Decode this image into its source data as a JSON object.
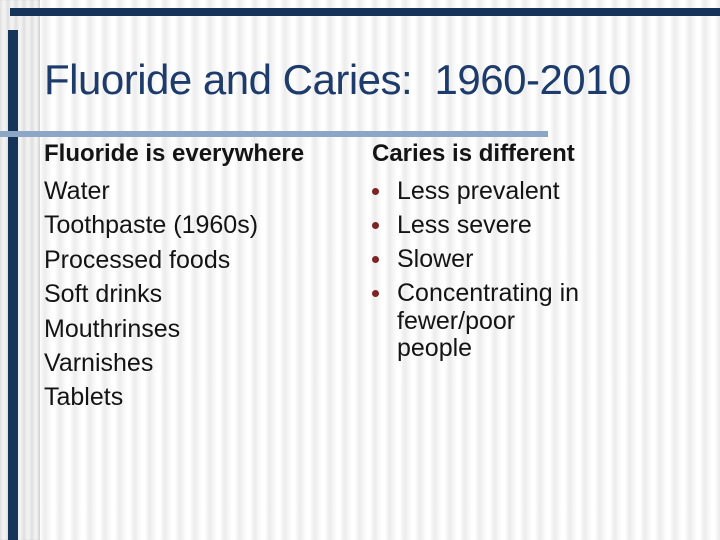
{
  "slide": {
    "title": "Fluoride and Caries:  1960-2010"
  },
  "left_column": {
    "heading": "Fluoride is everywhere",
    "items": [
      "Water",
      "Toothpaste (1960s)",
      "Processed foods",
      "Soft drinks",
      "Mouthrinses",
      "Varnishes",
      "Tablets"
    ]
  },
  "right_column": {
    "heading": "Caries is different",
    "items": [
      "Less prevalent",
      "Less severe",
      "Slower",
      "Concentrating in fewer/poor people"
    ]
  },
  "colors": {
    "accent_navy": "#16345a",
    "title_navy": "#1d3b6b",
    "rule_steel_blue": "#8ca7c5",
    "bullet_maroon": "#7e2222",
    "body_text": "#141414",
    "stripe_gray": "#ececec"
  }
}
